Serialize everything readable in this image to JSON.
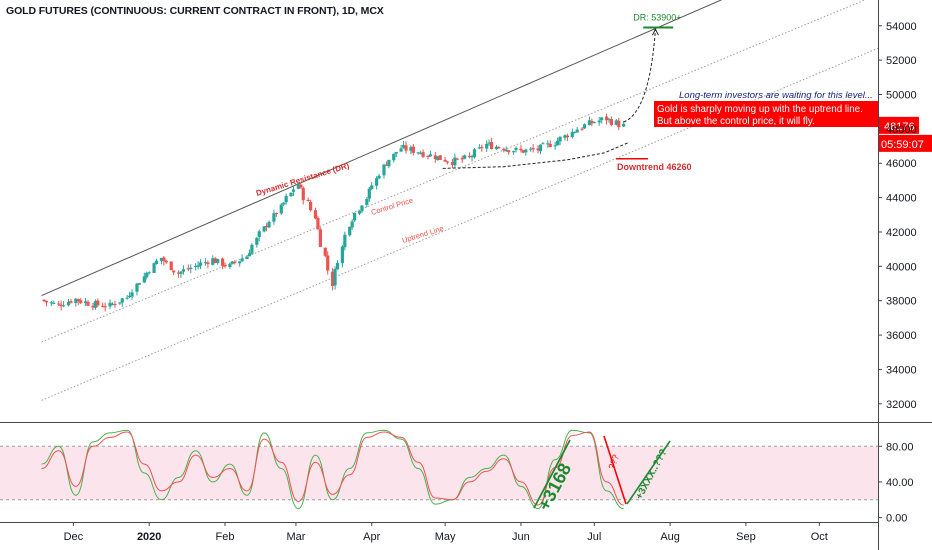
{
  "header": {
    "title": "GOLD FUTURES (CONTINUOUS: CURRENT CONTRACT IN FRONT), 1D, MCX"
  },
  "price_badges": {
    "last_price": "48176",
    "countdown": "05:59:07"
  },
  "colors": {
    "up": "#26a69a",
    "down": "#ef5350",
    "badge": "#ff0000",
    "target": "#1b8a2e",
    "navy": "#1a237e",
    "resistance": "#555555",
    "stoch_k": "#4caf50",
    "stoch_d": "#ef5350",
    "stoch_band": "#fce4ec"
  },
  "annotations": {
    "dr_target": "DR: 53900+",
    "long_term": "Long-term investors are waiting for this level...",
    "callout_line1": "Gold is sharply moving up with the uptrend line.",
    "callout_line2": "But above the control price, it will fly.",
    "downtrend": "Downtrend 46260",
    "dynamic_resistance": "Dynamic Resistance (DR)",
    "control_price": "Control Price",
    "uptrend_line": "Uptrend Line",
    "stoch_up": "+3168",
    "stoch_q": "???",
    "stoch_next": "+3XXX..???"
  },
  "chart_data": [
    {
      "type": "candlestick",
      "title": "GOLD FUTURES (CONTINUOUS: CURRENT CONTRACT IN FRONT), 1D, MCX",
      "ylim": [
        31000,
        55500
      ],
      "yticks": [
        32000,
        34000,
        36000,
        38000,
        40000,
        42000,
        44000,
        46000,
        48000,
        50000,
        52000,
        54000
      ],
      "xticks": [
        "Dec",
        "2020",
        "Feb",
        "Mar",
        "Apr",
        "May",
        "Jun",
        "Jul",
        "Aug",
        "Sep",
        "Oct"
      ],
      "last_close": 48176,
      "levels": {
        "dr_target": 53900,
        "downtrend": 46260
      },
      "close_path": [
        [
          "2019-11-18",
          38050
        ],
        [
          "2019-11-25",
          37750
        ],
        [
          "2019-12-02",
          38100
        ],
        [
          "2019-12-09",
          37800
        ],
        [
          "2019-12-16",
          37700
        ],
        [
          "2019-12-23",
          38200
        ],
        [
          "2019-12-30",
          39400
        ],
        [
          "2020-01-06",
          40500
        ],
        [
          "2020-01-13",
          39600
        ],
        [
          "2020-01-20",
          40000
        ],
        [
          "2020-01-27",
          40400
        ],
        [
          "2020-02-03",
          40000
        ],
        [
          "2020-02-10",
          40600
        ],
        [
          "2020-02-17",
          42200
        ],
        [
          "2020-02-24",
          43400
        ],
        [
          "2020-03-02",
          44800
        ],
        [
          "2020-03-09",
          42900
        ],
        [
          "2020-03-16",
          39000
        ],
        [
          "2020-03-23",
          42500
        ],
        [
          "2020-03-30",
          44000
        ],
        [
          "2020-04-06",
          45800
        ],
        [
          "2020-04-13",
          46900
        ],
        [
          "2020-04-20",
          46700
        ],
        [
          "2020-04-27",
          46400
        ],
        [
          "2020-05-04",
          46100
        ],
        [
          "2020-05-11",
          46300
        ],
        [
          "2020-05-18",
          47100
        ],
        [
          "2020-05-25",
          46900
        ],
        [
          "2020-06-01",
          46700
        ],
        [
          "2020-06-08",
          46800
        ],
        [
          "2020-06-15",
          47200
        ],
        [
          "2020-06-22",
          47800
        ],
        [
          "2020-06-29",
          48300
        ],
        [
          "2020-07-06",
          48600
        ],
        [
          "2020-07-13",
          48176
        ]
      ],
      "lines": [
        {
          "name": "Dynamic Resistance (DR)",
          "from": [
            "2019-11-18",
            38300
          ],
          "to": [
            "2020-07-27",
            53900
          ]
        },
        {
          "name": "Control Price",
          "from": [
            "2019-11-18",
            35600
          ],
          "to": [
            "2020-07-27",
            50500
          ]
        },
        {
          "name": "Uptrend Line",
          "from": [
            "2019-11-18",
            32200
          ],
          "to": [
            "2020-07-27",
            47300
          ]
        }
      ]
    },
    {
      "type": "line",
      "ylim": [
        -5,
        105
      ],
      "yticks": [
        0.0,
        40.0,
        80.0
      ],
      "band": [
        20,
        80
      ],
      "series": [
        {
          "values": [
            60,
            80,
            25,
            85,
            95,
            98,
            50,
            20,
            45,
            75,
            40,
            60,
            25,
            95,
            55,
            10,
            70,
            20,
            55,
            95,
            98,
            88,
            55,
            15,
            20,
            45,
            55,
            70,
            35,
            10,
            65,
            98,
            95,
            30,
            10
          ]
        },
        {
          "values": [
            55,
            75,
            35,
            80,
            90,
            96,
            60,
            30,
            40,
            70,
            45,
            55,
            30,
            88,
            62,
            18,
            62,
            26,
            48,
            90,
            96,
            90,
            62,
            22,
            20,
            40,
            52,
            66,
            40,
            14,
            56,
            92,
            96,
            40,
            14
          ]
        }
      ]
    }
  ]
}
